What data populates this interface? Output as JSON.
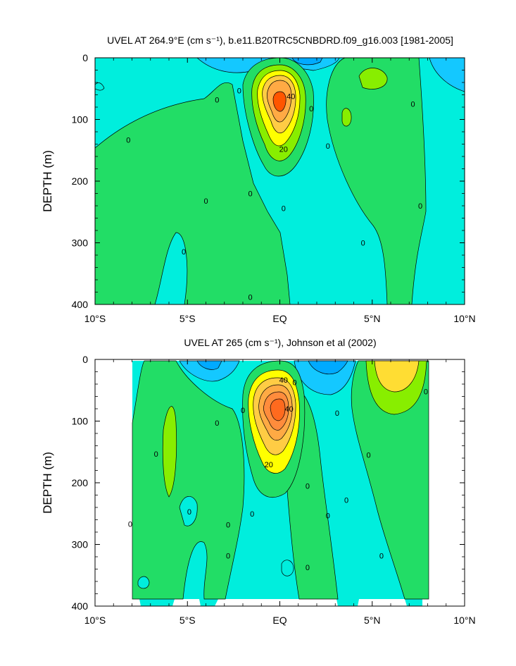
{
  "chart_data": [
    {
      "type": "contour",
      "title": "UVEL AT 264.9°E (cm s⁻¹), b.e11.B20TRC5CNBDRD.f09_g16.003 [1981-2005]",
      "ylabel": "DEPTH (m)",
      "xlabel": "",
      "x_ticks": [
        "10°S",
        "5°S",
        "EQ",
        "5°N",
        "10°N"
      ],
      "x_values": [
        -10,
        -5,
        0,
        5,
        10
      ],
      "y_ticks": [
        "0",
        "100",
        "200",
        "300",
        "400"
      ],
      "y_values": [
        0,
        100,
        200,
        300,
        400
      ],
      "xlim": [
        -10,
        10
      ],
      "ylim": [
        400,
        0
      ],
      "contour_interval_cm_s": 10,
      "max_core": {
        "lat": 0,
        "depth_m": 75,
        "value_cm_s": 55
      },
      "contour_labels": [
        {
          "text": "0",
          "lat": -8.2,
          "depth": 133
        },
        {
          "text": "0",
          "lat": -3.4,
          "depth": 68
        },
        {
          "text": "0",
          "lat": -2.2,
          "depth": 53
        },
        {
          "text": "0",
          "lat": -1.6,
          "depth": 220
        },
        {
          "text": "0",
          "lat": -4.0,
          "depth": 232
        },
        {
          "text": "0",
          "lat": -5.2,
          "depth": 314
        },
        {
          "text": "0",
          "lat": -1.6,
          "depth": 388
        },
        {
          "text": "40",
          "lat": 0.6,
          "depth": 62
        },
        {
          "text": "20",
          "lat": 0.2,
          "depth": 148
        },
        {
          "text": "0",
          "lat": 1.7,
          "depth": 82
        },
        {
          "text": "0",
          "lat": 2.6,
          "depth": 143
        },
        {
          "text": "0",
          "lat": 0.2,
          "depth": 244
        },
        {
          "text": "0",
          "lat": 4.5,
          "depth": 300
        },
        {
          "text": "0",
          "lat": 7.2,
          "depth": 75
        },
        {
          "text": "0",
          "lat": 7.6,
          "depth": 240
        }
      ]
    },
    {
      "type": "contour",
      "title": "UVEL AT 265 (cm s⁻¹), Johnson et al (2002)",
      "ylabel": "DEPTH (m)",
      "xlabel": "",
      "x_ticks": [
        "10°S",
        "5°S",
        "EQ",
        "5°N",
        "10°N"
      ],
      "x_values": [
        -10,
        -5,
        0,
        5,
        10
      ],
      "y_ticks": [
        "0",
        "100",
        "200",
        "300",
        "400"
      ],
      "y_values": [
        0,
        100,
        200,
        300,
        400
      ],
      "xlim": [
        -10,
        10
      ],
      "ylim": [
        400,
        0
      ],
      "data_extent_lat": [
        -8,
        8
      ],
      "contour_interval_cm_s": 10,
      "max_core": {
        "lat": 0,
        "depth_m": 70,
        "value_cm_s": 80
      },
      "contour_labels": [
        {
          "text": "40",
          "lat": 0.2,
          "depth": 33
        },
        {
          "text": "0",
          "lat": 0.8,
          "depth": 37
        },
        {
          "text": "40",
          "lat": 0.5,
          "depth": 80
        },
        {
          "text": "20",
          "lat": -0.6,
          "depth": 170
        },
        {
          "text": "0",
          "lat": -2.0,
          "depth": 82
        },
        {
          "text": "0",
          "lat": -3.4,
          "depth": 103
        },
        {
          "text": "0",
          "lat": -6.7,
          "depth": 153
        },
        {
          "text": "0",
          "lat": -8.1,
          "depth": 267
        },
        {
          "text": "0",
          "lat": -4.9,
          "depth": 247
        },
        {
          "text": "0",
          "lat": -2.8,
          "depth": 268
        },
        {
          "text": "0",
          "lat": -2.8,
          "depth": 318
        },
        {
          "text": "0",
          "lat": -1.5,
          "depth": 250
        },
        {
          "text": "0",
          "lat": 1.5,
          "depth": 205
        },
        {
          "text": "0",
          "lat": 3.1,
          "depth": 87
        },
        {
          "text": "0",
          "lat": 4.8,
          "depth": 155
        },
        {
          "text": "0",
          "lat": 3.6,
          "depth": 228
        },
        {
          "text": "0",
          "lat": 2.6,
          "depth": 253
        },
        {
          "text": "0",
          "lat": 1.5,
          "depth": 337
        },
        {
          "text": "0",
          "lat": 5.5,
          "depth": 318
        },
        {
          "text": "0",
          "lat": 7.9,
          "depth": 52
        }
      ]
    }
  ],
  "colors": {
    "negative_deep": "#00aaff",
    "negative": "#14c8ff",
    "near_zero_neg": "#00eedd",
    "zero_pos": "#22dd66",
    "low_pos": "#88ee00",
    "mid_pos": "#ffff00",
    "high_pos": "#ffaa44",
    "max_pos": "#ff5500"
  }
}
